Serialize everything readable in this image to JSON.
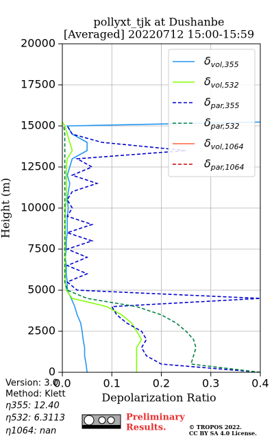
{
  "chart_data": {
    "type": "line",
    "title": "pollyxt_tjk at Dushanbe",
    "subtitle": "[Averaged] 20220712 15:00-15:59",
    "x_label": "Depolarization Ratio",
    "y_label": "Height (m)",
    "xlim": [
      0,
      0.4
    ],
    "ylim": [
      0,
      20000
    ],
    "xticks": [
      {
        "value": 0,
        "label": "0.0"
      },
      0.1,
      0.2,
      0.3,
      0.4
    ],
    "yticks": [
      0,
      2500,
      5000,
      7500,
      10000,
      12500,
      15000,
      17500,
      20000
    ],
    "grid": true,
    "legend": "upper right",
    "y": [
      0,
      500,
      1000,
      1500,
      2000,
      2500,
      3000,
      3500,
      4000,
      4500,
      5000,
      5500,
      6000,
      6500,
      7000,
      7500,
      8000,
      8500,
      9000,
      9500,
      10000,
      10500,
      11000,
      11500,
      12000,
      12500,
      13000,
      13500,
      14000,
      14500,
      15000,
      15250
    ],
    "series": [
      {
        "name": "δvol,355",
        "color": "#2196f3",
        "dash": false,
        "values": [
          0.05,
          0.048,
          0.045,
          0.045,
          0.042,
          0.04,
          0.037,
          0.03,
          0.025,
          0.018,
          0.01,
          0.01,
          0.008,
          0.008,
          0.006,
          0.008,
          0.008,
          0.01,
          0.01,
          0.01,
          0.012,
          0.01,
          0.012,
          0.015,
          0.01,
          0.015,
          0.02,
          0.05,
          0.05,
          0.02,
          0.01,
          0.42
        ]
      },
      {
        "name": "δvol,532",
        "color": "#80ff00",
        "dash": false,
        "values": [
          0.15,
          0.15,
          0.15,
          0.15,
          0.16,
          0.15,
          0.14,
          0.12,
          0.09,
          0.02,
          0.008,
          0.006,
          0.006,
          0.006,
          0.006,
          0.006,
          0.006,
          0.006,
          0.006,
          0.006,
          0.006,
          0.008,
          0.008,
          0.008,
          0.008,
          0.008,
          0.01,
          0.02,
          0.015,
          0.01,
          0.005,
          0.0
        ]
      },
      {
        "name": "δpar,355",
        "color": "#0000cc",
        "dash": true,
        "values": [
          0.4,
          0.2,
          0.17,
          0.16,
          0.17,
          0.16,
          0.13,
          0.11,
          0.1,
          0.4,
          0.03,
          0.01,
          0.05,
          0.01,
          0.05,
          0.01,
          0.06,
          0.01,
          0.06,
          0.01,
          0.02,
          0.01,
          0.02,
          0.07,
          0.02,
          0.06,
          0.03,
          0.25,
          0.08,
          0.02,
          0.01,
          null
        ]
      },
      {
        "name": "δpar,532",
        "color": "#008040",
        "dash": true,
        "values": [
          0.4,
          0.26,
          0.265,
          0.27,
          0.265,
          0.25,
          0.23,
          0.2,
          0.15,
          0.05,
          0.01,
          0.005,
          0.005,
          0.005,
          0.005,
          0.005,
          0.005,
          0.005,
          0.005,
          0.005,
          0.005,
          0.005,
          0.005,
          0.005,
          0.005,
          0.005,
          0.005,
          0.005,
          0.005,
          0.005,
          0.003,
          null
        ]
      },
      {
        "name": "δvol,1064",
        "color": "#ff6040",
        "dash": false,
        "values": [
          null,
          null,
          null,
          null,
          null,
          null,
          null,
          null,
          null,
          null,
          null,
          null,
          null,
          null,
          null,
          null,
          null,
          null,
          null,
          null,
          null,
          null,
          null,
          null,
          null,
          null,
          null,
          null,
          null,
          null,
          null,
          null
        ]
      },
      {
        "name": "δpar,1064",
        "color": "#cc0000",
        "dash": true,
        "values": [
          null,
          null,
          null,
          null,
          null,
          null,
          null,
          null,
          null,
          null,
          null,
          null,
          null,
          null,
          null,
          null,
          null,
          null,
          null,
          null,
          null,
          null,
          null,
          null,
          null,
          null,
          null,
          null,
          null,
          null,
          null,
          null
        ]
      }
    ],
    "annotations": {
      "version": "Version: 3.0",
      "method": "Method: Klett",
      "eta355": "η355:  12.40",
      "eta532": "η532: 6.3113",
      "eta1064": "η1064:    nan",
      "preliminary": "Preliminary",
      "results": "Results.",
      "copyright": "© TROPOS 2022.",
      "license": "CC BY SA 4.0 License."
    }
  }
}
